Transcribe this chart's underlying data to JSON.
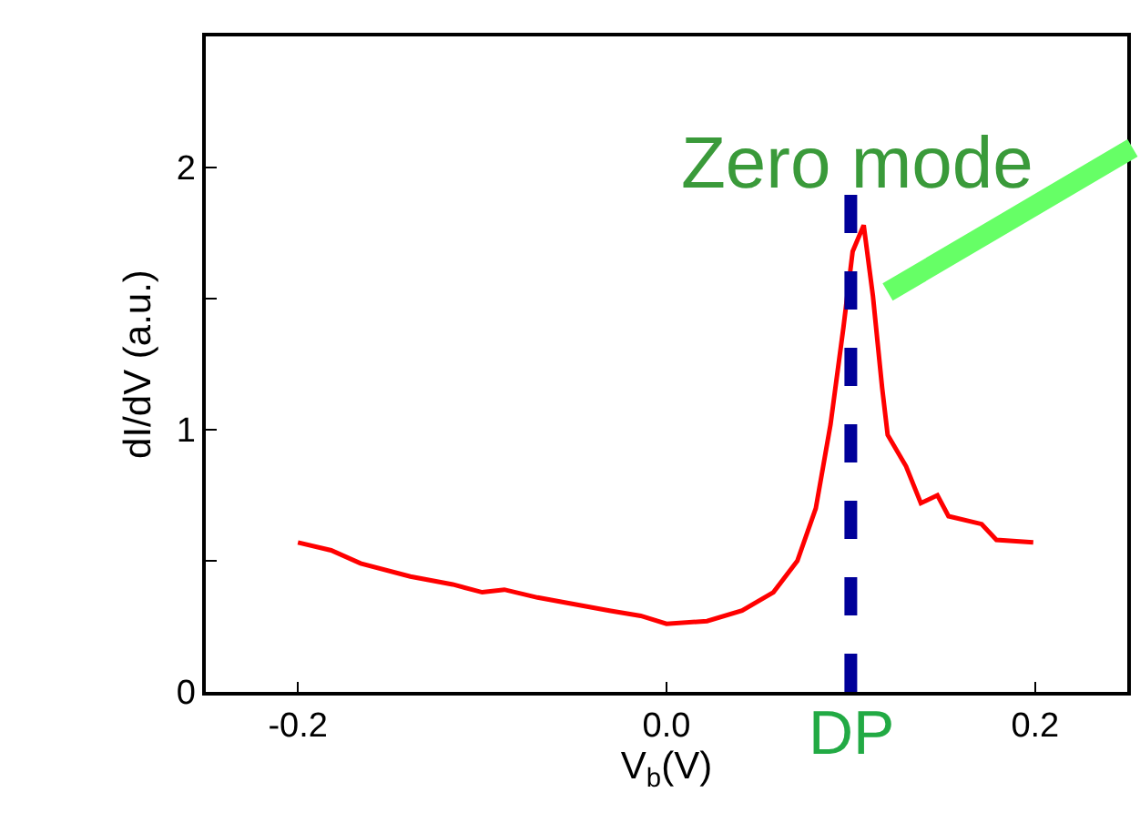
{
  "chart_data": {
    "type": "line",
    "xlabel": "V$_{b}$(V)",
    "ylabel": "dI/dV (a.u.)",
    "xlim": [
      -0.25,
      0.25
    ],
    "xticks": [
      -0.2,
      {
        "value": 0.0,
        "label": "0.0"
      },
      0.2
    ],
    "ylim": [
      0,
      2.5
    ],
    "yticks": [
      0,
      {
        "value": 0.5,
        "label": null
      },
      1,
      {
        "value": 1.5,
        "label": null
      },
      2
    ],
    "marker": "none",
    "line_style": "solid",
    "series": [
      {
        "color": "#ff0000",
        "x": [
          -0.2,
          -0.182,
          -0.166,
          -0.139,
          -0.116,
          -0.1,
          -0.088,
          -0.07,
          -0.031,
          -0.014,
          0.0,
          0.022,
          0.041,
          0.058,
          0.071,
          0.081,
          0.089,
          0.096,
          0.101,
          0.107,
          0.112,
          0.117,
          0.12,
          0.13,
          0.138,
          0.147,
          0.153,
          0.171,
          0.179,
          0.199
        ],
        "values": [
          0.57,
          0.54,
          0.49,
          0.44,
          0.41,
          0.38,
          0.39,
          0.36,
          0.31,
          0.29,
          0.26,
          0.27,
          0.31,
          0.38,
          0.5,
          0.7,
          1.02,
          1.39,
          1.68,
          1.78,
          1.51,
          1.16,
          0.98,
          0.86,
          0.72,
          0.75,
          0.67,
          0.64,
          0.58,
          0.57
        ]
      }
    ],
    "ref_lines": [
      {
        "axis": "x",
        "value": 0.1,
        "label": "DP",
        "color": "#000099",
        "line_style": "dashed"
      }
    ],
    "annotations": [
      "Zero mode"
    ]
  }
}
